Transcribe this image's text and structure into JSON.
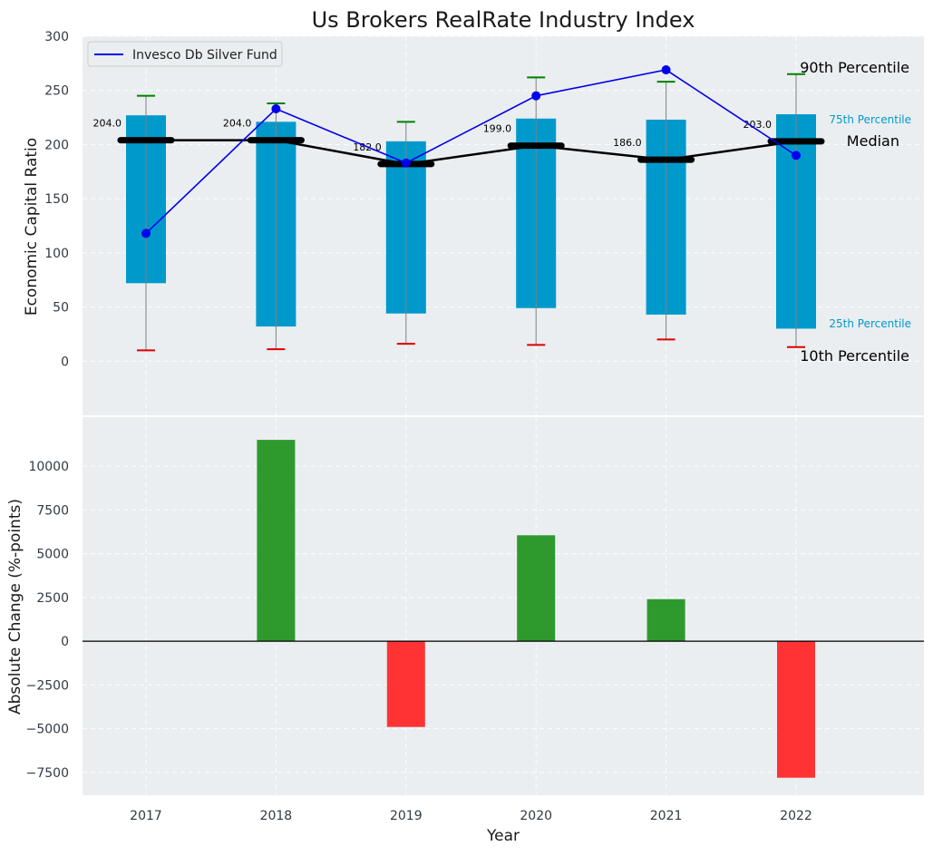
{
  "chart_data": [
    {
      "type": "box",
      "title": "Us Brokers RealRate Industry Index",
      "ylabel": "Economic Capital Ratio",
      "ylim": [
        -50,
        300
      ],
      "yticks": [
        0,
        50,
        100,
        150,
        200,
        250,
        300
      ],
      "categories": [
        "2017",
        "2018",
        "2019",
        "2020",
        "2021",
        "2022"
      ],
      "p10": [
        10,
        11,
        16,
        15,
        20,
        13
      ],
      "p25": [
        72,
        32,
        44,
        49,
        43,
        30
      ],
      "median": [
        204,
        204,
        182,
        199,
        186,
        203
      ],
      "median_labels": [
        "204.0",
        "204.0",
        "182.0",
        "199.0",
        "186.0",
        "203.0"
      ],
      "p75": [
        227,
        221,
        203,
        224,
        223,
        228
      ],
      "p90": [
        245,
        238,
        221,
        262,
        258,
        265
      ],
      "series": [
        {
          "name": "Invesco Db Silver Fund",
          "values": [
            118,
            233,
            183,
            245,
            269,
            190
          ]
        }
      ],
      "legend": {
        "position": "top-left",
        "label": "Invesco Db Silver Fund"
      },
      "annotations": {
        "p90": "90th Percentile",
        "p75": "75th Percentile",
        "median": "Median",
        "p25": "25th Percentile",
        "p10": "10th Percentile"
      },
      "colors": {
        "box": "#0099cc",
        "median": "#000000",
        "series": "#0000ee",
        "p90_cap": "#008000",
        "p10_cap": "#dd0000",
        "whisker": "#808080",
        "background": "#eaeef0"
      }
    },
    {
      "type": "bar",
      "ylabel": "Absolute Change (%-points)",
      "xlabel": "Year",
      "ylim": [
        -8800,
        12800
      ],
      "yticks": [
        -7500,
        -5000,
        -2500,
        0,
        2500,
        5000,
        7500,
        10000
      ],
      "ytick_labels": [
        "−7500",
        "−5000",
        "−2500",
        "0",
        "2500",
        "5000",
        "7500",
        "10000"
      ],
      "categories": [
        "2017",
        "2018",
        "2019",
        "2020",
        "2021",
        "2022"
      ],
      "values": [
        0,
        11500,
        -4900,
        6050,
        2400,
        -7800
      ],
      "colors": {
        "positive": "#2e9a2e",
        "negative": "#ff3333"
      }
    }
  ]
}
